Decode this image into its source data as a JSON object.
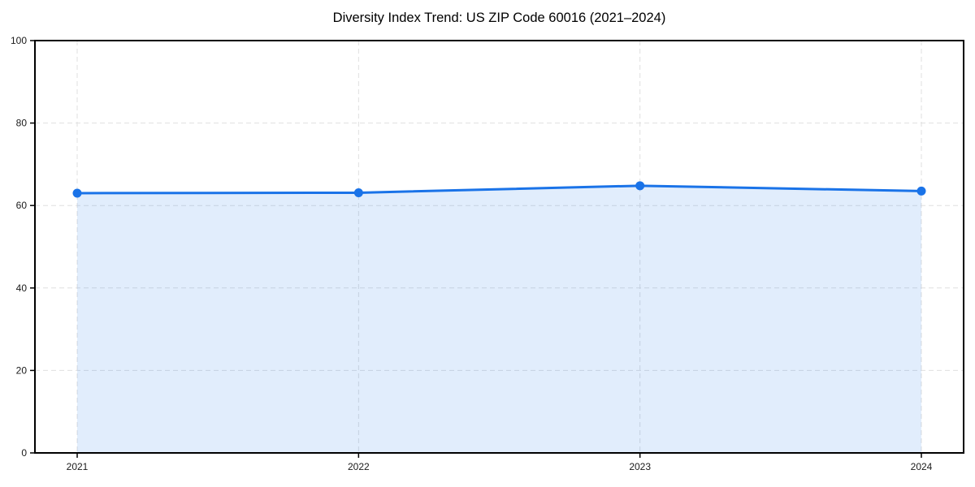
{
  "chart_data": {
    "type": "line",
    "title": "Diversity Index Trend: US ZIP Code 60016 (2021–2024)",
    "xlabel": "",
    "ylabel": "",
    "categories": [
      "2021",
      "2022",
      "2023",
      "2024"
    ],
    "series": [
      {
        "name": "Diversity Index",
        "values": [
          63.0,
          63.1,
          64.8,
          63.5
        ]
      }
    ],
    "ylim": [
      0,
      100
    ],
    "yticks": [
      0,
      20,
      40,
      60,
      80,
      100
    ],
    "grid": true,
    "grid_style": "dashed",
    "legend_position": "none",
    "area_fill": true,
    "colors": {
      "line": "#1a73e8",
      "marker": "#1a73e8",
      "area": "rgba(26,115,232,0.13)",
      "gridline": "#dfdfdf",
      "spine": "#000000",
      "tick_label": "#1a1a1a",
      "title": "#000000",
      "background": "#ffffff"
    }
  }
}
